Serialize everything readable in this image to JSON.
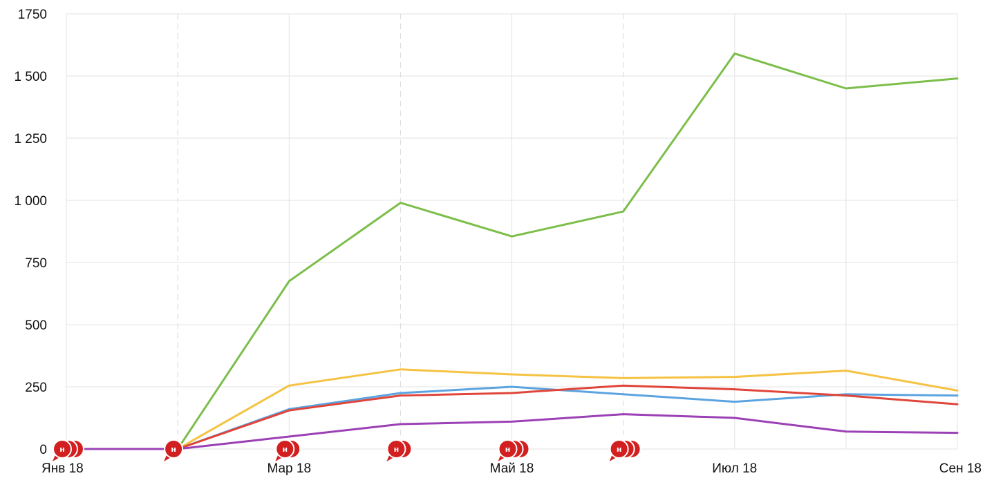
{
  "chart_data": {
    "type": "line",
    "x": [
      "2018-01",
      "2018-02",
      "2018-03",
      "2018-04",
      "2018-05",
      "2018-06",
      "2018-07",
      "2018-08",
      "2018-09"
    ],
    "x_tick_labels": [
      {
        "x": "2018-01",
        "label": "Янв 18"
      },
      {
        "x": "2018-03",
        "label": "Мар 18"
      },
      {
        "x": "2018-05",
        "label": "Май 18"
      },
      {
        "x": "2018-07",
        "label": "Июл 18"
      },
      {
        "x": "2018-09",
        "label": "Сен 18"
      }
    ],
    "y_ticks": [
      0,
      250,
      500,
      750,
      1000,
      1250,
      1500,
      1750
    ],
    "y_tick_labels": [
      "0",
      "250",
      "500",
      "750",
      "1 000",
      "1 250",
      "1 500",
      "1750"
    ],
    "ylim": [
      0,
      1750
    ],
    "grid": true,
    "dashed_x_gridlines": [
      "2018-02",
      "2018-04",
      "2018-06"
    ],
    "series": [
      {
        "color": "#7cbe4a",
        "values": [
          0,
          0,
          675,
          990,
          855,
          955,
          1590,
          1450,
          1490
        ]
      },
      {
        "color": "#f5c242",
        "values": [
          0,
          0,
          255,
          320,
          300,
          285,
          290,
          315,
          235
        ]
      },
      {
        "color": "#5ba4e0",
        "values": [
          0,
          0,
          160,
          225,
          250,
          220,
          190,
          220,
          215
        ]
      },
      {
        "color": "#e0453a",
        "values": [
          0,
          0,
          155,
          215,
          225,
          255,
          240,
          215,
          180
        ]
      },
      {
        "color": "#9b40b5",
        "values": [
          0,
          0,
          50,
          100,
          110,
          140,
          125,
          70,
          65
        ]
      }
    ],
    "annotations": [
      {
        "x": "2018-01",
        "label": "н",
        "stack": 3
      },
      {
        "x": "2018-02",
        "label": "н",
        "stack": 1
      },
      {
        "x": "2018-03",
        "label": "н",
        "stack": 2
      },
      {
        "x": "2018-04",
        "label": "н",
        "stack": 2
      },
      {
        "x": "2018-05",
        "label": "н",
        "stack": 3
      },
      {
        "x": "2018-06",
        "label": "н",
        "stack": 3
      }
    ],
    "marker_color": "#d21f1f"
  }
}
